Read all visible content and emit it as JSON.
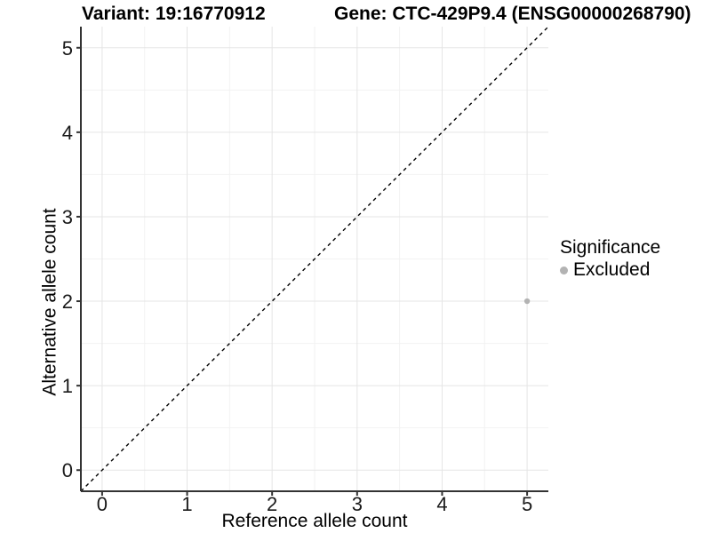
{
  "chart_data": {
    "type": "scatter",
    "titles": [
      "Variant: 19:16770912",
      "Gene: CTC-429P9.4 (ENSG00000268790)"
    ],
    "xlabel": "Reference allele count",
    "ylabel": "Alternative allele count",
    "xlim": [
      -0.25,
      5.25
    ],
    "ylim": [
      -0.25,
      5.25
    ],
    "xticks": [
      0,
      1,
      2,
      3,
      4,
      5
    ],
    "yticks": [
      0,
      1,
      2,
      3,
      4,
      5
    ],
    "x_minor": [
      0.5,
      1.5,
      2.5,
      3.5,
      4.5
    ],
    "y_minor": [
      0.5,
      1.5,
      2.5,
      3.5,
      4.5
    ],
    "grid": "major and minor gridlines, white panel background",
    "points": [
      {
        "x": 5,
        "y": 2,
        "significance": "Excluded",
        "color": "#b3b3b3"
      }
    ],
    "identity_line": {
      "equation": "y = x",
      "style": "dashed",
      "color": "#000000"
    },
    "legend": {
      "position": "right",
      "title": "Significance",
      "entries": [
        {
          "label": "Excluded",
          "color": "#b3b3b3",
          "marker": "circle"
        }
      ]
    }
  },
  "colors": {
    "background": "#ffffff",
    "axis": "#333333",
    "grid_major": "#e5e5e5",
    "grid_minor": "#f2f2f2",
    "tick_text": "#1a1a1a",
    "point": "#b3b3b3"
  }
}
